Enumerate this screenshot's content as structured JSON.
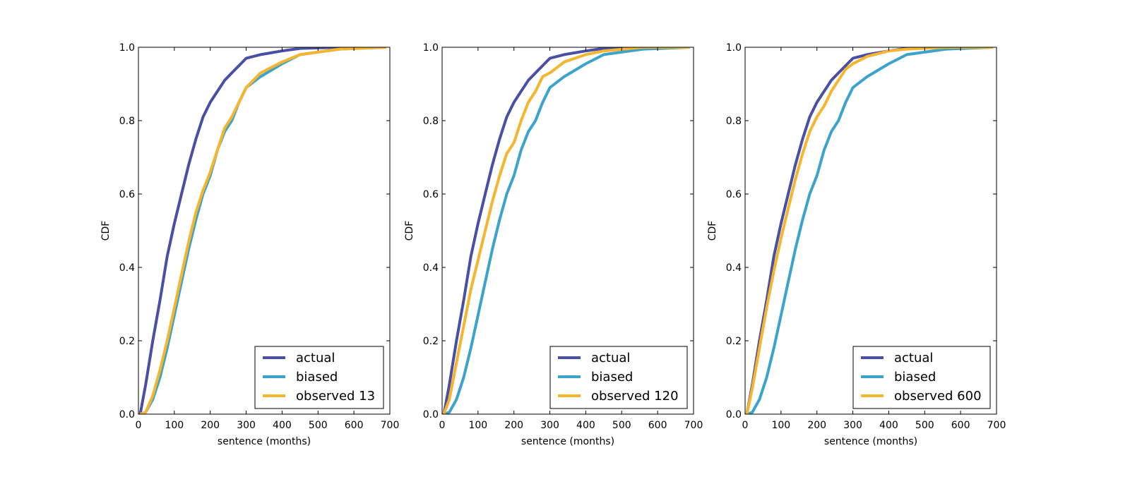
{
  "colors": {
    "actual": "#4a4fa6",
    "biased": "#3ba3cc",
    "observed": "#f5b52e"
  },
  "chart_data": [
    {
      "type": "line",
      "xlabel": "sentence (months)",
      "ylabel": "CDF",
      "xlim": [
        0,
        700
      ],
      "ylim": [
        0,
        1.0
      ],
      "xticks": [
        "0",
        "100",
        "200",
        "300",
        "400",
        "500",
        "600",
        "700"
      ],
      "yticks": [
        "0.0",
        "0.2",
        "0.4",
        "0.6",
        "0.8",
        "1.0"
      ],
      "legend_position": "bottom-right",
      "series": [
        {
          "name": "actual",
          "color_key": "actual",
          "x": [
            5,
            20,
            40,
            60,
            80,
            100,
            120,
            140,
            160,
            180,
            200,
            220,
            240,
            260,
            280,
            300,
            340,
            400,
            450,
            560,
            690
          ],
          "y": [
            0,
            0.08,
            0.2,
            0.31,
            0.43,
            0.52,
            0.6,
            0.68,
            0.75,
            0.81,
            0.85,
            0.88,
            0.91,
            0.93,
            0.95,
            0.97,
            0.98,
            0.99,
            0.997,
            1.0,
            1.0
          ]
        },
        {
          "name": "biased",
          "color_key": "biased",
          "x": [
            5,
            20,
            40,
            60,
            80,
            100,
            120,
            140,
            160,
            180,
            200,
            220,
            240,
            260,
            280,
            300,
            340,
            400,
            450,
            560,
            690
          ],
          "y": [
            0,
            0.005,
            0.04,
            0.1,
            0.18,
            0.27,
            0.36,
            0.45,
            0.53,
            0.6,
            0.65,
            0.72,
            0.77,
            0.8,
            0.85,
            0.89,
            0.92,
            0.955,
            0.98,
            0.995,
            1.0
          ]
        },
        {
          "name": "observed 13",
          "color_key": "observed",
          "x": [
            5,
            20,
            40,
            60,
            80,
            100,
            120,
            140,
            160,
            180,
            200,
            220,
            240,
            260,
            280,
            300,
            340,
            400,
            450,
            560,
            690
          ],
          "y": [
            0,
            0.005,
            0.05,
            0.12,
            0.2,
            0.29,
            0.38,
            0.47,
            0.55,
            0.61,
            0.66,
            0.72,
            0.78,
            0.81,
            0.85,
            0.89,
            0.93,
            0.96,
            0.98,
            0.995,
            1.0
          ]
        }
      ]
    },
    {
      "type": "line",
      "xlabel": "sentence (months)",
      "ylabel": "CDF",
      "xlim": [
        0,
        700
      ],
      "ylim": [
        0,
        1.0
      ],
      "xticks": [
        "0",
        "100",
        "200",
        "300",
        "400",
        "500",
        "600",
        "700"
      ],
      "yticks": [
        "0.0",
        "0.2",
        "0.4",
        "0.6",
        "0.8",
        "1.0"
      ],
      "legend_position": "bottom-right",
      "series": [
        {
          "name": "actual",
          "color_key": "actual",
          "x": [
            5,
            20,
            40,
            60,
            80,
            100,
            120,
            140,
            160,
            180,
            200,
            220,
            240,
            260,
            280,
            300,
            340,
            400,
            450,
            560,
            690
          ],
          "y": [
            0,
            0.08,
            0.2,
            0.31,
            0.43,
            0.52,
            0.6,
            0.68,
            0.75,
            0.81,
            0.85,
            0.88,
            0.91,
            0.93,
            0.95,
            0.97,
            0.98,
            0.99,
            0.997,
            1.0,
            1.0
          ]
        },
        {
          "name": "biased",
          "color_key": "biased",
          "x": [
            5,
            20,
            40,
            60,
            80,
            100,
            120,
            140,
            160,
            180,
            200,
            220,
            240,
            260,
            280,
            300,
            340,
            400,
            450,
            560,
            690
          ],
          "y": [
            0,
            0.005,
            0.04,
            0.1,
            0.18,
            0.27,
            0.36,
            0.45,
            0.53,
            0.6,
            0.65,
            0.72,
            0.77,
            0.8,
            0.85,
            0.89,
            0.92,
            0.955,
            0.98,
            0.995,
            1.0
          ]
        },
        {
          "name": "observed 120",
          "color_key": "observed",
          "x": [
            5,
            20,
            40,
            60,
            80,
            100,
            120,
            140,
            160,
            180,
            200,
            220,
            240,
            260,
            280,
            300,
            340,
            400,
            450,
            560,
            690
          ],
          "y": [
            0,
            0.04,
            0.14,
            0.24,
            0.34,
            0.42,
            0.5,
            0.58,
            0.65,
            0.71,
            0.74,
            0.8,
            0.85,
            0.88,
            0.92,
            0.93,
            0.96,
            0.98,
            0.99,
            1.0,
            1.0
          ]
        }
      ]
    },
    {
      "type": "line",
      "xlabel": "sentence (months)",
      "ylabel": "CDF",
      "xlim": [
        0,
        700
      ],
      "ylim": [
        0,
        1.0
      ],
      "xticks": [
        "0",
        "100",
        "200",
        "300",
        "400",
        "500",
        "600",
        "700"
      ],
      "yticks": [
        "0.0",
        "0.2",
        "0.4",
        "0.6",
        "0.8",
        "1.0"
      ],
      "legend_position": "bottom-right",
      "series": [
        {
          "name": "actual",
          "color_key": "actual",
          "x": [
            5,
            20,
            40,
            60,
            80,
            100,
            120,
            140,
            160,
            180,
            200,
            220,
            240,
            260,
            280,
            300,
            340,
            400,
            450,
            560,
            690
          ],
          "y": [
            0,
            0.08,
            0.2,
            0.31,
            0.43,
            0.52,
            0.6,
            0.68,
            0.75,
            0.81,
            0.85,
            0.88,
            0.91,
            0.93,
            0.95,
            0.97,
            0.98,
            0.99,
            0.997,
            1.0,
            1.0
          ]
        },
        {
          "name": "biased",
          "color_key": "biased",
          "x": [
            5,
            20,
            40,
            60,
            80,
            100,
            120,
            140,
            160,
            180,
            200,
            220,
            240,
            260,
            280,
            300,
            340,
            400,
            450,
            560,
            690
          ],
          "y": [
            0,
            0.005,
            0.04,
            0.1,
            0.18,
            0.27,
            0.36,
            0.45,
            0.53,
            0.6,
            0.65,
            0.72,
            0.77,
            0.8,
            0.85,
            0.89,
            0.92,
            0.955,
            0.98,
            0.995,
            1.0
          ]
        },
        {
          "name": "observed 600",
          "color_key": "observed",
          "x": [
            5,
            20,
            40,
            60,
            80,
            100,
            120,
            140,
            160,
            180,
            200,
            220,
            240,
            260,
            280,
            300,
            340,
            400,
            450,
            560,
            690
          ],
          "y": [
            0,
            0.07,
            0.18,
            0.29,
            0.39,
            0.48,
            0.56,
            0.64,
            0.71,
            0.77,
            0.81,
            0.84,
            0.88,
            0.91,
            0.94,
            0.955,
            0.975,
            0.99,
            0.995,
            1.0,
            1.0
          ]
        }
      ]
    }
  ]
}
